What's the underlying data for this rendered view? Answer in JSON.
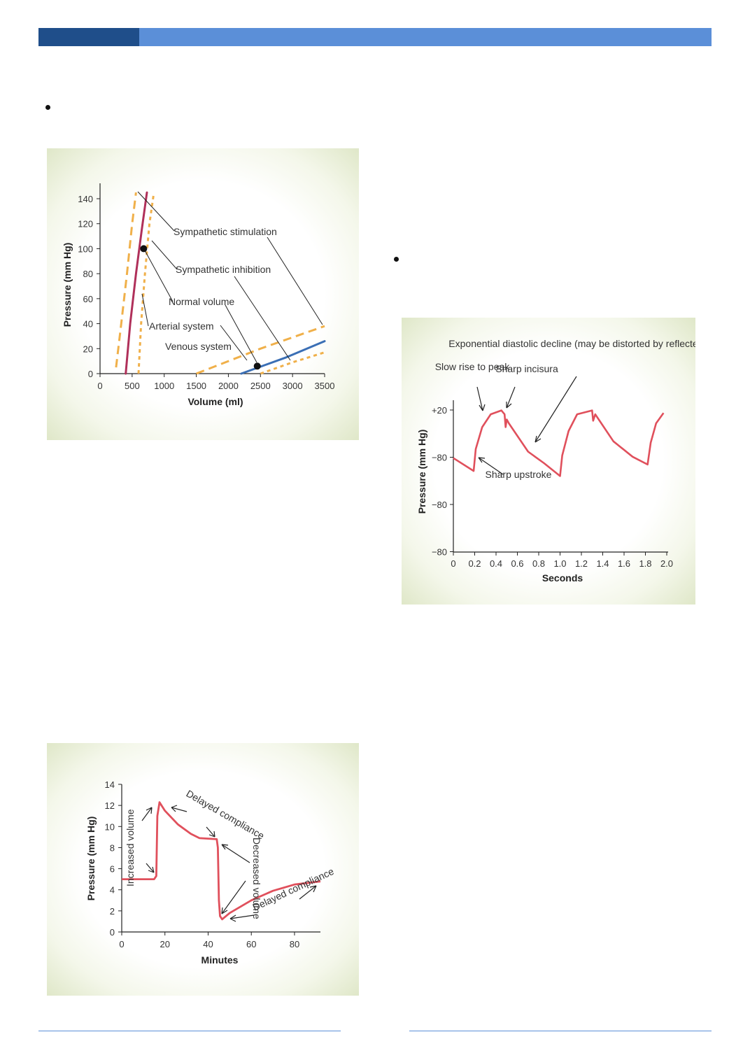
{
  "colors": {
    "header_dark": "#1f4e8a",
    "header_light": "#5b8fd8",
    "dashed": "#f0b04a",
    "normal": "#b0305a",
    "venous": "#3b6fb5",
    "curve": "#e0505c"
  },
  "chart_data": [
    {
      "type": "line",
      "xlabel": "Volume (ml)",
      "ylabel": "Pressure (mm Hg)",
      "xlim": [
        0,
        3500
      ],
      "ylim": [
        0,
        150
      ],
      "x_ticks": [
        "0",
        "500",
        "1000",
        "1500",
        "2000",
        "2500",
        "3000",
        "3500"
      ],
      "y_ticks": [
        "0",
        "20",
        "40",
        "60",
        "80",
        "100",
        "120",
        "140"
      ],
      "series": [
        {
          "name": "Sympathetic stimulation",
          "style": "dashed",
          "points": [
            [
              250,
              5
            ],
            [
              330,
              40
            ],
            [
              420,
              80
            ],
            [
              500,
              120
            ],
            [
              560,
              145
            ]
          ]
        },
        {
          "name": "Normal volume",
          "style": "solid",
          "points": [
            [
              400,
              0
            ],
            [
              470,
              40
            ],
            [
              560,
              80
            ],
            [
              650,
              115
            ],
            [
              730,
              145
            ]
          ]
        },
        {
          "name": "Sympathetic inhibition",
          "style": "dotted",
          "points": [
            [
              600,
              0
            ],
            [
              640,
              40
            ],
            [
              700,
              80
            ],
            [
              770,
              120
            ],
            [
              840,
              145
            ]
          ]
        },
        {
          "name": "Sympathetic stimulation",
          "style": "dashed",
          "points": [
            [
              1500,
              0
            ],
            [
              2500,
              20
            ],
            [
              3500,
              38
            ]
          ]
        },
        {
          "name": "Venous system",
          "style": "solid",
          "points": [
            [
              2200,
              0
            ],
            [
              2900,
              13
            ],
            [
              3500,
              26
            ]
          ]
        },
        {
          "name": "Sympathetic inhibition",
          "style": "dotted",
          "points": [
            [
              2500,
              0
            ],
            [
              3000,
              9
            ],
            [
              3500,
              17
            ]
          ]
        }
      ],
      "markers": [
        {
          "x": 680,
          "y": 100
        },
        {
          "x": 2450,
          "y": 6
        }
      ],
      "annotations": [
        "Sympathetic stimulation",
        "Sympathetic inhibition",
        "Normal volume",
        "Arterial system",
        "Venous system"
      ]
    },
    {
      "type": "line",
      "xlabel": "Seconds",
      "ylabel": "Pressure (mm Hg)",
      "xlim": [
        0,
        2.0
      ],
      "x_ticks": [
        "0",
        "0.2",
        "0.4",
        "0.6",
        "0.8",
        "1.0",
        "1.2",
        "1.4",
        "1.6",
        "1.8",
        "2.0"
      ],
      "y_ticks": [
        "+20",
        "−80",
        "−80",
        "−80"
      ],
      "series": [
        {
          "points": [
            [
              0,
              0.73
            ],
            [
              0.19,
              0.63
            ],
            [
              0.21,
              0.8
            ],
            [
              0.27,
              0.97
            ],
            [
              0.35,
              1.07
            ],
            [
              0.45,
              1.1
            ],
            [
              0.48,
              1.07
            ],
            [
              0.49,
              0.97
            ],
            [
              0.5,
              1.03
            ],
            [
              0.52,
              1.0
            ],
            [
              0.7,
              0.78
            ],
            [
              0.85,
              0.69
            ],
            [
              1.0,
              0.59
            ],
            [
              1.02,
              0.75
            ],
            [
              1.08,
              0.94
            ],
            [
              1.16,
              1.07
            ],
            [
              1.3,
              1.1
            ],
            [
              1.31,
              1.02
            ],
            [
              1.33,
              1.07
            ],
            [
              1.5,
              0.86
            ],
            [
              1.68,
              0.74
            ],
            [
              1.82,
              0.68
            ],
            [
              1.85,
              0.85
            ],
            [
              1.9,
              1.0
            ],
            [
              1.97,
              1.08
            ]
          ]
        }
      ],
      "annotations": [
        "Slow rise to peak",
        "Sharp incisura",
        "Exponential diastolic decline (may be distorted by reflected wave)",
        "Sharp upstroke"
      ]
    },
    {
      "type": "line",
      "xlabel": "Minutes",
      "ylabel": "Pressure (mm Hg)",
      "xlim": [
        0,
        92
      ],
      "ylim": [
        0,
        14
      ],
      "x_ticks": [
        "0",
        "20",
        "40",
        "60",
        "80"
      ],
      "y_ticks": [
        "0",
        "2",
        "4",
        "6",
        "8",
        "10",
        "12",
        "14"
      ],
      "series": [
        {
          "points": [
            [
              0,
              5
            ],
            [
              15,
              5
            ],
            [
              16,
              5.3
            ],
            [
              16.5,
              11
            ],
            [
              17.5,
              12.3
            ],
            [
              20,
              11.5
            ],
            [
              26,
              10.2
            ],
            [
              32,
              9.3
            ],
            [
              36,
              8.9
            ],
            [
              44,
              8.8
            ],
            [
              44.5,
              8
            ],
            [
              45,
              3
            ],
            [
              45.5,
              1.5
            ],
            [
              46.5,
              1.2
            ],
            [
              50,
              1.8
            ],
            [
              60,
              3
            ],
            [
              70,
              3.9
            ],
            [
              80,
              4.5
            ],
            [
              92,
              4.8
            ]
          ]
        }
      ],
      "annotations": [
        "Increased volume",
        "Delayed compliance",
        "Decreased volume",
        "Delayed compliance"
      ]
    }
  ]
}
